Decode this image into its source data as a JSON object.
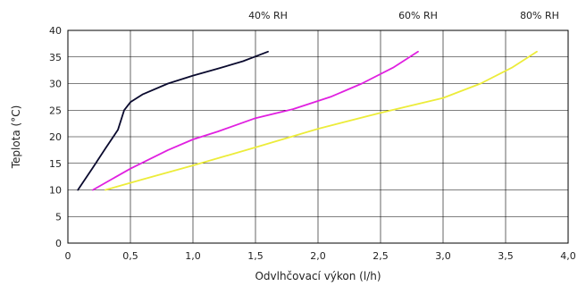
{
  "chart_data": {
    "type": "line",
    "title": "",
    "xlabel": "Odvlhčovací výkon (l/h)",
    "ylabel": "Teplota (°C)",
    "xlim": [
      0,
      4.0
    ],
    "ylim": [
      0,
      40
    ],
    "x_ticks": [
      0,
      0.5,
      1.0,
      1.5,
      2.0,
      2.5,
      3.0,
      3.5,
      4.0
    ],
    "x_tick_labels": [
      "0",
      "0,5",
      "1,0",
      "1,5",
      "2,0",
      "2,5",
      "3,0",
      "3,5",
      "4,0"
    ],
    "y_ticks": [
      0,
      5,
      10,
      15,
      20,
      25,
      30,
      35,
      40
    ],
    "y_tick_labels": [
      "0",
      "5",
      "10",
      "15",
      "20",
      "25",
      "30",
      "35",
      "40"
    ],
    "grid": true,
    "series": [
      {
        "name": "40% RH",
        "color": "#0a0a2e",
        "points": [
          [
            0.08,
            10
          ],
          [
            0.2,
            14.2
          ],
          [
            0.3,
            17.8
          ],
          [
            0.4,
            21.3
          ],
          [
            0.45,
            25
          ],
          [
            0.5,
            26.5
          ],
          [
            0.6,
            28
          ],
          [
            0.8,
            30
          ],
          [
            1.0,
            31.5
          ],
          [
            1.2,
            32.8
          ],
          [
            1.4,
            34.2
          ],
          [
            1.6,
            36
          ]
        ]
      },
      {
        "name": "60% RH",
        "color": "#e020e0",
        "points": [
          [
            0.2,
            10
          ],
          [
            0.5,
            14
          ],
          [
            0.8,
            17.5
          ],
          [
            1.0,
            19.5
          ],
          [
            1.2,
            21
          ],
          [
            1.5,
            23.5
          ],
          [
            1.8,
            25.2
          ],
          [
            2.1,
            27.5
          ],
          [
            2.35,
            30
          ],
          [
            2.6,
            33
          ],
          [
            2.8,
            36
          ]
        ]
      },
      {
        "name": "80% RH",
        "color": "#ecec3a",
        "points": [
          [
            0.3,
            10
          ],
          [
            0.6,
            12
          ],
          [
            1.0,
            14.6
          ],
          [
            1.5,
            18
          ],
          [
            2.0,
            21.5
          ],
          [
            2.5,
            24.5
          ],
          [
            3.0,
            27.3
          ],
          [
            3.3,
            30
          ],
          [
            3.55,
            33
          ],
          [
            3.75,
            36
          ]
        ]
      }
    ],
    "annotations": [
      "40% RH",
      "60% RH",
      "80% RH"
    ]
  }
}
